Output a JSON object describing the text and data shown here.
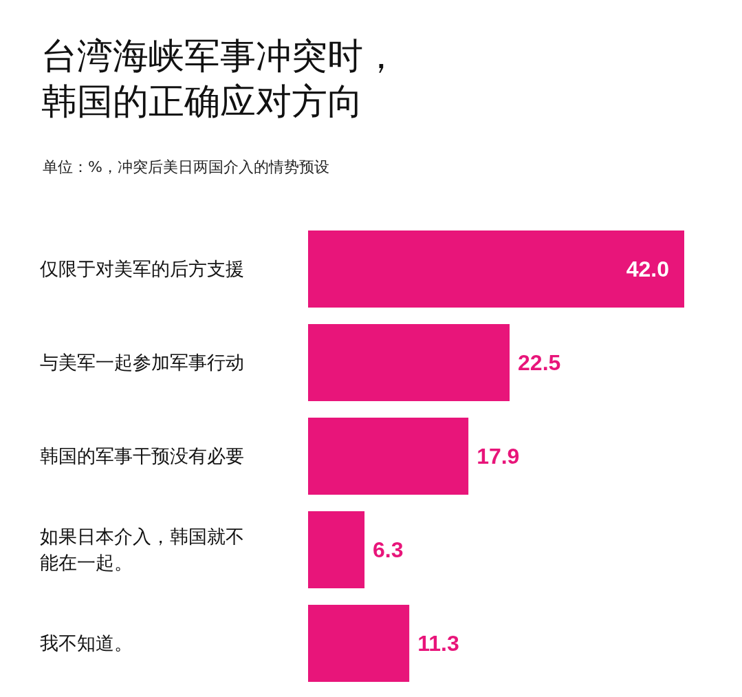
{
  "chart_data": {
    "type": "bar",
    "orientation": "horizontal",
    "title": "台湾海峡军事冲突时，韩国的正确应对方向",
    "subtitle": "单位：%，冲突后美日两国介入的情势预设",
    "categories": [
      "仅限于对美军的后方支援",
      "与美军一起参加军事行动",
      "韩国的军事干预没有必要",
      "如果日本介入，韩国就不能在一起。",
      "我不知道。"
    ],
    "values": [
      42.0,
      22.5,
      17.9,
      6.3,
      11.3
    ],
    "value_labels": [
      "42.0",
      "22.5",
      "17.9",
      "6.3",
      "11.3"
    ],
    "color": "#e8157a"
  }
}
